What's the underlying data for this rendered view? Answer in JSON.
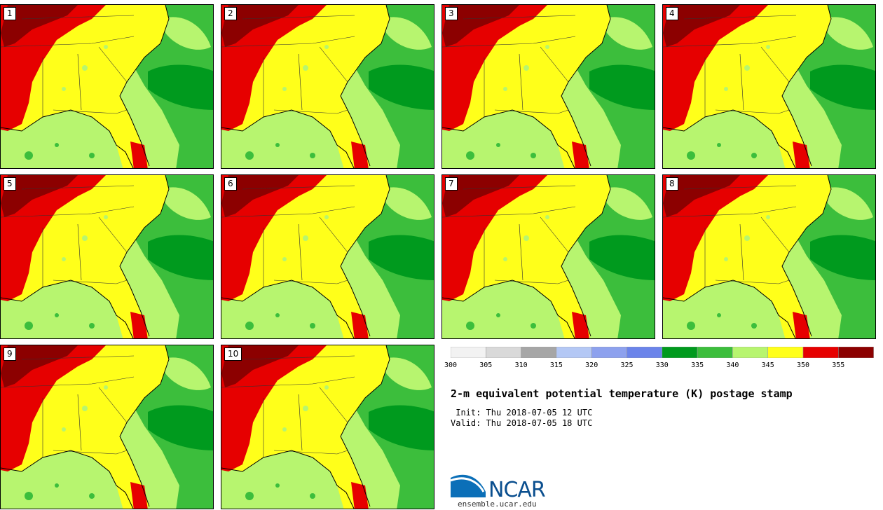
{
  "members": [
    "1",
    "2",
    "3",
    "4",
    "5",
    "6",
    "7",
    "8",
    "9",
    "10"
  ],
  "colorbar": {
    "colors": [
      "#f2f2f2",
      "#d9d9d9",
      "#a6a6a6",
      "#b4c8f5",
      "#8da1ee",
      "#6b84ea",
      "#009a1e",
      "#3cbe3c",
      "#b7f56f",
      "#ffff1a",
      "#e60000",
      "#8c0000"
    ],
    "ticks": [
      "300",
      "305",
      "310",
      "315",
      "320",
      "325",
      "330",
      "335",
      "340",
      "345",
      "350",
      "355"
    ]
  },
  "title": "2-m equivalent potential temperature (K) postage stamp",
  "init": " Init: Thu 2018-07-05 12 UTC",
  "valid": "Valid: Thu 2018-07-05 18 UTC",
  "logo": {
    "text": "NCAR",
    "url": "ensemble.ucar.edu"
  }
}
